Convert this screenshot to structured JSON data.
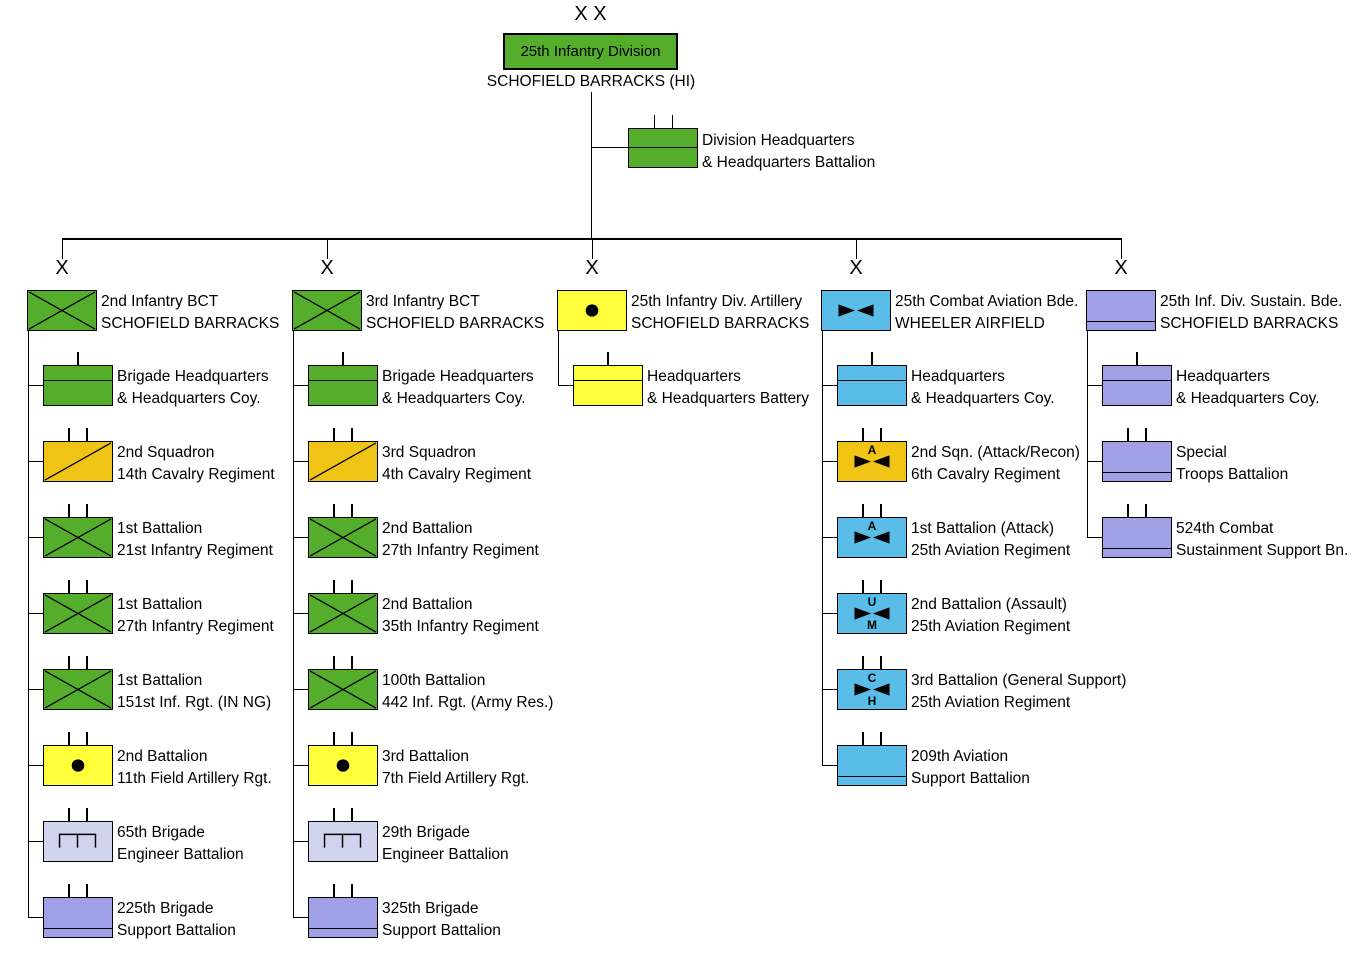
{
  "colors": {
    "infantry": "#55AE2B",
    "artillery": "#FFFF3C",
    "cavalry": "#F0C414",
    "aviation": "#5ABDE8",
    "sustainment": "#A0A0E6",
    "engineer": "#D0D4EE"
  },
  "division": {
    "echelon": "X X",
    "name": "25th Infantry Division",
    "location": "SCHOFIELD BARRACKS (HI)",
    "color": "infantry"
  },
  "division_hq": {
    "line1": "Division Headquarters",
    "line2": "& Headquarters Battalion",
    "symbol": "hq",
    "color": "infantry",
    "ticks": 2
  },
  "columns": [
    {
      "echelon": "X",
      "header": {
        "line1": "2nd Infantry BCT",
        "line2": "SCHOFIELD BARRACKS",
        "symbol": "infantry",
        "color": "infantry"
      },
      "children": [
        {
          "line1": "Brigade Headquarters",
          "line2": "& Headquarters Coy.",
          "symbol": "hq",
          "color": "infantry",
          "ticks": 1
        },
        {
          "line1": "2nd Squadron",
          "line2": "14th Cavalry Regiment",
          "symbol": "cavalry",
          "color": "cavalry",
          "ticks": 2
        },
        {
          "line1": "1st Battalion",
          "line2": "21st Infantry Regiment",
          "symbol": "infantry",
          "color": "infantry",
          "ticks": 2
        },
        {
          "line1": "1st Battalion",
          "line2": "27th Infantry Regiment",
          "symbol": "infantry",
          "color": "infantry",
          "ticks": 2
        },
        {
          "line1": "1st Battalion",
          "line2": "151st Inf. Rgt. (IN NG)",
          "symbol": "infantry",
          "color": "infantry",
          "ticks": 2
        },
        {
          "line1": "2nd Battalion",
          "line2": "11th Field Artillery Rgt.",
          "symbol": "artillery",
          "color": "artillery",
          "ticks": 2
        },
        {
          "line1": "65th Brigade",
          "line2": "Engineer Battalion",
          "symbol": "engineer",
          "color": "engineer",
          "ticks": 2
        },
        {
          "line1": "225th Brigade",
          "line2": "Support Battalion",
          "symbol": "support",
          "color": "sustainment",
          "ticks": 2
        }
      ]
    },
    {
      "echelon": "X",
      "header": {
        "line1": "3rd Infantry BCT",
        "line2": "SCHOFIELD BARRACKS",
        "symbol": "infantry",
        "color": "infantry"
      },
      "children": [
        {
          "line1": "Brigade Headquarters",
          "line2": "& Headquarters Coy.",
          "symbol": "hq",
          "color": "infantry",
          "ticks": 1
        },
        {
          "line1": "3rd Squadron",
          "line2": "4th Cavalry Regiment",
          "symbol": "cavalry",
          "color": "cavalry",
          "ticks": 2
        },
        {
          "line1": "2nd Battalion",
          "line2": "27th Infantry Regiment",
          "symbol": "infantry",
          "color": "infantry",
          "ticks": 2
        },
        {
          "line1": "2nd Battalion",
          "line2": "35th Infantry Regiment",
          "symbol": "infantry",
          "color": "infantry",
          "ticks": 2
        },
        {
          "line1": "100th Battalion",
          "line2": "442 Inf. Rgt. (Army Res.)",
          "symbol": "infantry",
          "color": "infantry",
          "ticks": 2
        },
        {
          "line1": "3rd Battalion",
          "line2": "7th Field Artillery Rgt.",
          "symbol": "artillery",
          "color": "artillery",
          "ticks": 2
        },
        {
          "line1": "29th Brigade",
          "line2": "Engineer Battalion",
          "symbol": "engineer",
          "color": "engineer",
          "ticks": 2
        },
        {
          "line1": "325th Brigade",
          "line2": "Support Battalion",
          "symbol": "support",
          "color": "sustainment",
          "ticks": 2
        }
      ]
    },
    {
      "echelon": "X",
      "header": {
        "line1": "25th Infantry Div. Artillery",
        "line2": "SCHOFIELD BARRACKS",
        "symbol": "artillery",
        "color": "artillery"
      },
      "children": [
        {
          "line1": "Headquarters",
          "line2": "& Headquarters Battery",
          "symbol": "hq",
          "color": "artillery",
          "ticks": 1
        }
      ]
    },
    {
      "echelon": "X",
      "header": {
        "line1": "25th Combat Aviation Bde.",
        "line2": "WHEELER AIRFIELD",
        "symbol": "aviation",
        "color": "aviation"
      },
      "children": [
        {
          "line1": "Headquarters",
          "line2": "& Headquarters Coy.",
          "symbol": "hq",
          "color": "aviation",
          "ticks": 1
        },
        {
          "line1": "2nd Sqn. (Attack/Recon)",
          "line2": "6th Cavalry Regiment",
          "symbol": "aviation",
          "letter_top": "A",
          "color": "cavalry",
          "ticks": 2
        },
        {
          "line1": "1st Battalion (Attack)",
          "line2": "25th Aviation Regiment",
          "symbol": "aviation",
          "letter_top": "A",
          "color": "aviation",
          "ticks": 2
        },
        {
          "line1": "2nd Battalion (Assault)",
          "line2": "25th Aviation Regiment",
          "symbol": "aviation",
          "letter_top": "U",
          "letter_bottom": "M",
          "color": "aviation",
          "ticks": 2
        },
        {
          "line1": "3rd Battalion (General Support)",
          "line2": "25th Aviation Regiment",
          "symbol": "aviation",
          "letter_top": "C",
          "letter_bottom": "H",
          "color": "aviation",
          "ticks": 2
        },
        {
          "line1": "209th Aviation",
          "line2": "Support Battalion",
          "symbol": "support",
          "color": "aviation",
          "ticks": 2
        }
      ]
    },
    {
      "echelon": "X",
      "header": {
        "line1": "25th Inf. Div. Sustain. Bde.",
        "line2": "SCHOFIELD BARRACKS",
        "symbol": "support",
        "color": "sustainment"
      },
      "children": [
        {
          "line1": "Headquarters",
          "line2": "& Headquarters Coy.",
          "symbol": "hq",
          "color": "sustainment",
          "ticks": 1
        },
        {
          "line1": "Special",
          "line2": "Troops Battalion",
          "symbol": "support",
          "color": "sustainment",
          "ticks": 2
        },
        {
          "line1": "524th Combat",
          "line2": "Sustainment Support Bn.",
          "symbol": "support",
          "color": "sustainment",
          "ticks": 2
        }
      ]
    }
  ]
}
